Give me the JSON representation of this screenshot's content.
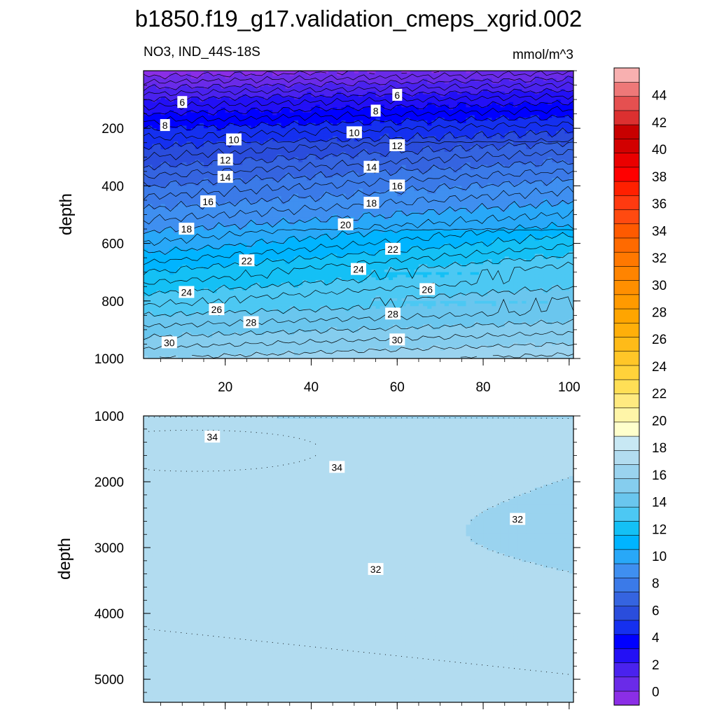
{
  "title": "b1850.f19_g17.validation_cmeps_xgrid.002",
  "colors": {
    "palette": [
      "#8b2ee6",
      "#6a2be8",
      "#4a22ee",
      "#2310f5",
      "#0000ff",
      "#1530ef",
      "#2a4ddc",
      "#3564e0",
      "#3b7ae8",
      "#3f8ff0",
      "#28a8f8",
      "#00b4ff",
      "#14c0f5",
      "#4cc8f3",
      "#6ac6ee",
      "#85cdee",
      "#9ad3ef",
      "#b2dcf0",
      "#c8e8f4",
      "#ffffcc",
      "#fff5a8",
      "#ffea80",
      "#ffdf56",
      "#ffd23a",
      "#ffc628",
      "#ffbb18",
      "#ffaf0a",
      "#ffa500",
      "#ff9a00",
      "#ff8f00",
      "#ff8400",
      "#ff7800",
      "#ff6a00",
      "#ff5a00",
      "#ff4a10",
      "#ff3a10",
      "#ff2000",
      "#ff0000",
      "#ea0000",
      "#d20000",
      "#c80000",
      "#dc3030",
      "#e55050",
      "#ee7878",
      "#f8b0b0"
    ],
    "line": "#000000"
  },
  "chart_data": [
    {
      "type": "contour",
      "panel": "upper",
      "left_title": "NO3, IND_44S-18S",
      "right_title": "mmol/m^3",
      "ylabel": "depth",
      "xlabel": "",
      "xlim": [
        1,
        101
      ],
      "ylim": [
        1000,
        0
      ],
      "y_ticks": [
        200,
        400,
        600,
        800,
        1000
      ],
      "x_ticks": [
        20,
        40,
        60,
        80,
        100
      ],
      "contour_interval": 1,
      "contour_labels": [
        {
          "text": "6",
          "x": 10,
          "y": 110
        },
        {
          "text": "6",
          "x": 60,
          "y": 85
        },
        {
          "text": "8",
          "x": 6,
          "y": 190
        },
        {
          "text": "8",
          "x": 55,
          "y": 140
        },
        {
          "text": "10",
          "x": 22,
          "y": 240
        },
        {
          "text": "10",
          "x": 50,
          "y": 215
        },
        {
          "text": "12",
          "x": 20,
          "y": 310
        },
        {
          "text": "12",
          "x": 60,
          "y": 260
        },
        {
          "text": "14",
          "x": 20,
          "y": 370
        },
        {
          "text": "14",
          "x": 54,
          "y": 335
        },
        {
          "text": "16",
          "x": 16,
          "y": 455
        },
        {
          "text": "16",
          "x": 60,
          "y": 400
        },
        {
          "text": "18",
          "x": 11,
          "y": 550
        },
        {
          "text": "18",
          "x": 54,
          "y": 460
        },
        {
          "text": "20",
          "x": 48,
          "y": 535
        },
        {
          "text": "22",
          "x": 25,
          "y": 660
        },
        {
          "text": "22",
          "x": 59,
          "y": 620
        },
        {
          "text": "24",
          "x": 11,
          "y": 770
        },
        {
          "text": "24",
          "x": 51,
          "y": 690
        },
        {
          "text": "26",
          "x": 18,
          "y": 830
        },
        {
          "text": "26",
          "x": 67,
          "y": 760
        },
        {
          "text": "28",
          "x": 26,
          "y": 875
        },
        {
          "text": "28",
          "x": 59,
          "y": 845
        },
        {
          "text": "30",
          "x": 7,
          "y": 945
        },
        {
          "text": "30",
          "x": 60,
          "y": 935
        }
      ]
    },
    {
      "type": "contour",
      "panel": "lower",
      "ylabel": "depth",
      "xlabel": "",
      "xlim": [
        1,
        101
      ],
      "ylim": [
        5350,
        1000
      ],
      "y_ticks": [
        1000,
        2000,
        3000,
        4000,
        5000
      ],
      "x_ticks": [
        20,
        40,
        60,
        80,
        100
      ],
      "contour_labels": [
        {
          "text": "34",
          "x": 17,
          "y": 1320
        },
        {
          "text": "34",
          "x": 46,
          "y": 1780
        },
        {
          "text": "32",
          "x": 88,
          "y": 2570
        },
        {
          "text": "32",
          "x": 55,
          "y": 3330
        }
      ]
    }
  ],
  "legend": {
    "levels": [
      0,
      2,
      4,
      6,
      8,
      10,
      12,
      14,
      16,
      18,
      20,
      22,
      24,
      26,
      28,
      30,
      32,
      34,
      36,
      38,
      40,
      42,
      44
    ],
    "labels": [
      "0",
      "2",
      "4",
      "6",
      "8",
      "10",
      "12",
      "14",
      "16",
      "18",
      "20",
      "22",
      "24",
      "26",
      "28",
      "30",
      "32",
      "34",
      "36",
      "38",
      "40",
      "42",
      "44"
    ],
    "min": -1,
    "max": 46
  }
}
